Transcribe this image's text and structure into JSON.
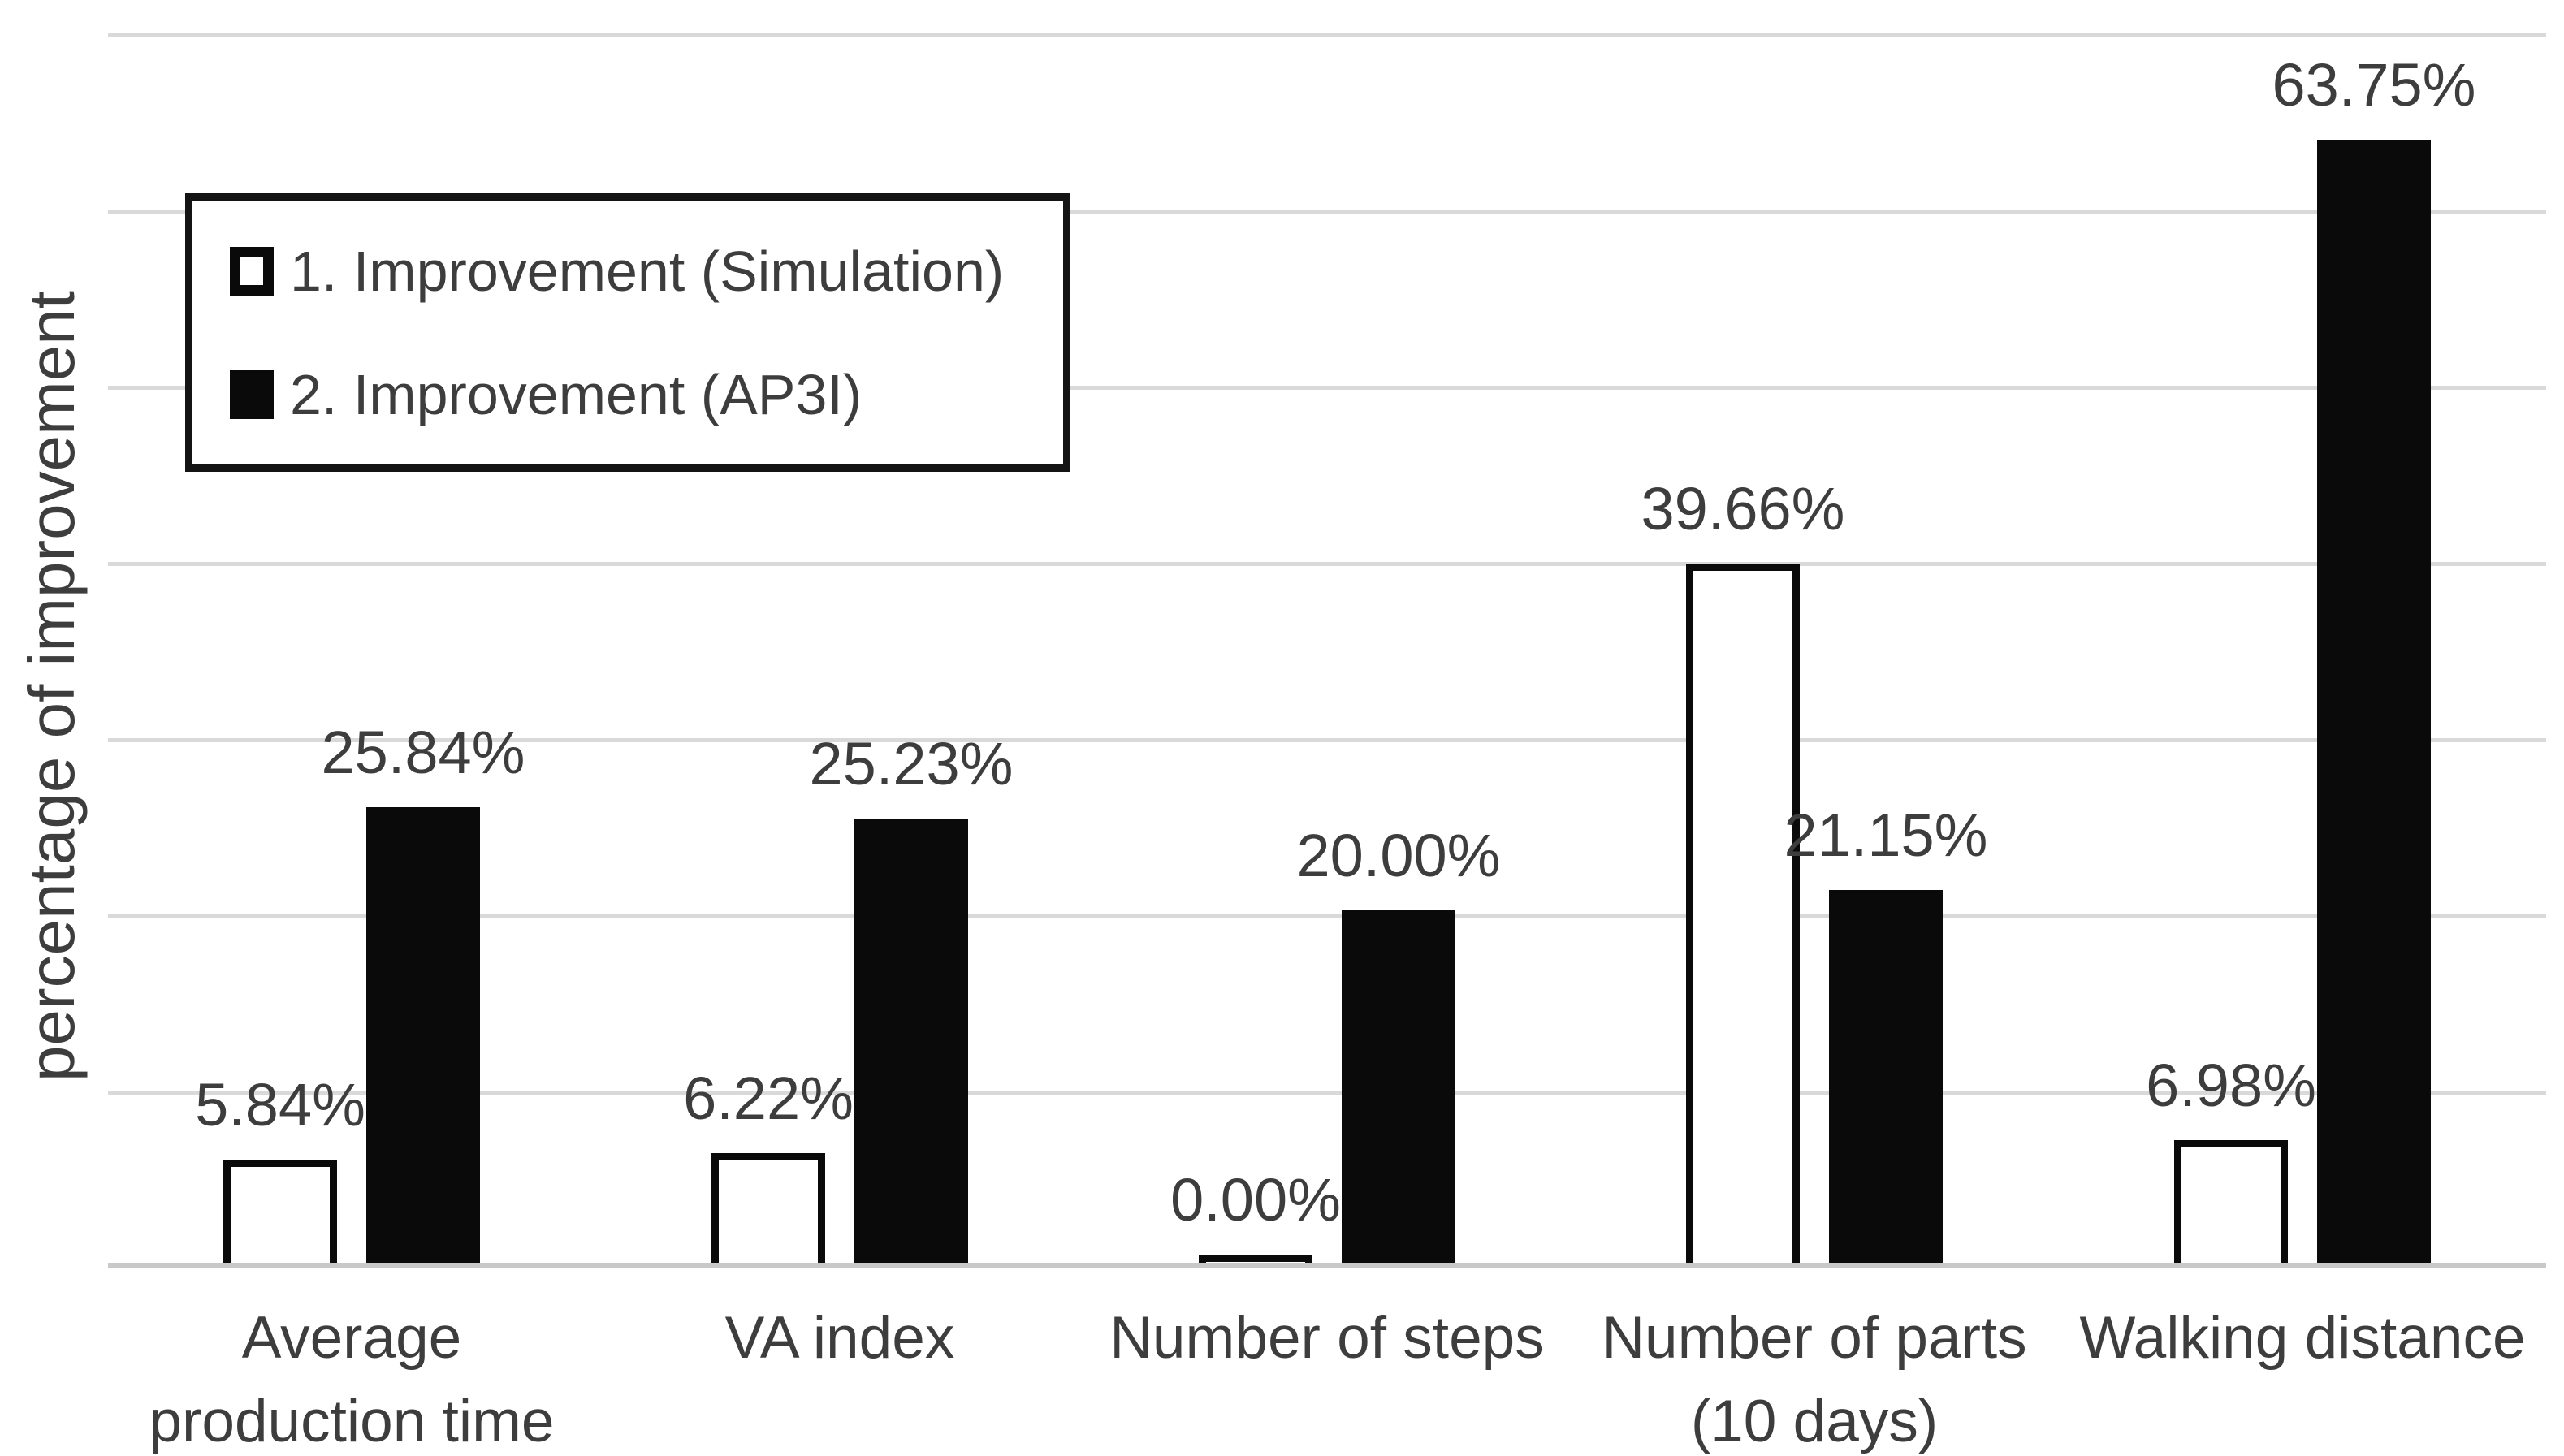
{
  "chart_data": {
    "type": "bar",
    "title": "",
    "xlabel": "",
    "ylabel": "percentage of improvement",
    "categories": [
      "Average\nproduction time",
      "VA index",
      "Number of steps",
      "Number of parts\n(10 days)",
      "Walking distance"
    ],
    "series": [
      {
        "name": "1. Improvement (Simulation)",
        "style": "outlined-white",
        "values": [
          5.84,
          6.22,
          0.0,
          39.66,
          6.98
        ]
      },
      {
        "name": "2. Improvement (AP3I)",
        "style": "solid-black",
        "values": [
          25.84,
          25.23,
          20.0,
          21.15,
          63.75
        ]
      }
    ],
    "data_labels": [
      "5.84%",
      "25.84%",
      "6.22%",
      "25.23%",
      "0.00%",
      "20.00%",
      "39.66%",
      "21.15%",
      "6.98%",
      "63.75%"
    ],
    "value_suffix": "%",
    "ylim": [
      0,
      70
    ],
    "gridline_step": 10,
    "grid": true,
    "y_tick_labels_shown": false,
    "legend_position": "top-left-inside"
  },
  "legend": {
    "items": [
      {
        "label": "1. Improvement (Simulation)",
        "marker": "white-square-outlined"
      },
      {
        "label": "2. Improvement (AP3I)",
        "marker": "black-square-solid"
      }
    ]
  },
  "colors": {
    "background": "#ffffff",
    "bar_black": "#0a0a0a",
    "bar_outline": "#0a0a0a",
    "gridline": "#d9d9d9",
    "baseline": "#c9c9c9",
    "text": "#3d3d3d",
    "legend_border": "#141414"
  }
}
